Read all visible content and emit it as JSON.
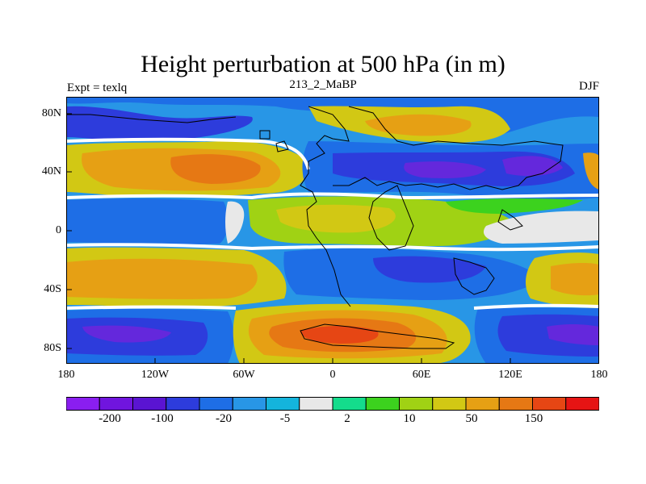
{
  "figure": {
    "title": "Height perturbation at 500 hPa (in m)",
    "left_label": "Expt = texlq",
    "center_label": "213_2_MaBP",
    "right_label": "DJF"
  },
  "axes": {
    "x_ticks": [
      "180",
      "120W",
      "60W",
      "0",
      "60E",
      "120E",
      "180"
    ],
    "y_ticks": [
      "80N",
      "40N",
      "0",
      "40S",
      "80S"
    ]
  },
  "colorbar": {
    "labels": [
      "-200",
      "-100",
      "-20",
      "-5",
      "2",
      "10",
      "50",
      "150"
    ],
    "colors": [
      "#8a1ef0",
      "#7015de",
      "#5a14d2",
      "#2d3cdc",
      "#1e6ee6",
      "#2896e6",
      "#14b4dc",
      "#e8e8e8",
      "#14dc8c",
      "#3cd21e",
      "#a0d214",
      "#d2c814",
      "#e6a014",
      "#e67814",
      "#e64614",
      "#e61414"
    ]
  },
  "field_colors": {
    "deep_purple": "#5014c8",
    "purple": "#6428dc",
    "dark_blue": "#2d3cdc",
    "blue": "#1e6ee6",
    "light_blue": "#2896e6",
    "cyan": "#14b4dc",
    "gray": "#e8e8e8",
    "teal": "#14dc8c",
    "green": "#3cd21e",
    "yellow_green": "#a0d214",
    "yellow": "#d2c814",
    "orange": "#e6a014",
    "dark_orange": "#e67814",
    "red_orange": "#e64614"
  }
}
